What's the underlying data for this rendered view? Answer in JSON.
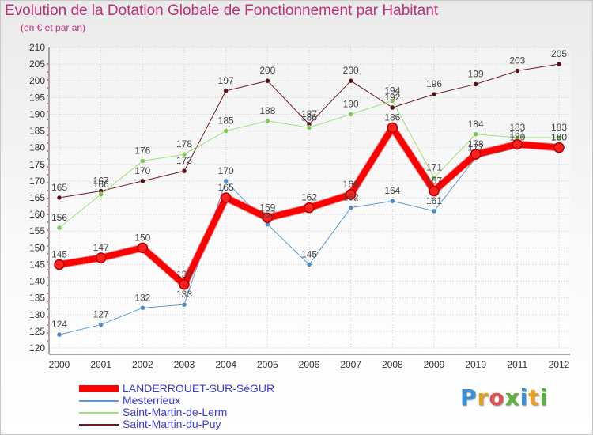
{
  "title": "Evolution de la Dotation Globale de Fonctionnement par Habitant",
  "subtitle": "(en € et par an)",
  "logo": {
    "letters": [
      "P",
      "r",
      "o",
      "x",
      "i",
      "t",
      "i"
    ],
    "colors": [
      "#3a8fd8",
      "#e8a020",
      "#e05050",
      "#5ab43c",
      "#3a8fd8",
      "#e8a020",
      "#5ab43c"
    ]
  },
  "chart_data": {
    "type": "line",
    "title": "Evolution de la Dotation Globale de Fonctionnement par Habitant",
    "subtitle": "(en € et par an)",
    "xlabel": "",
    "ylabel": "",
    "categories": [
      "2000",
      "2001",
      "2002",
      "2003",
      "2004",
      "2005",
      "2006",
      "2007",
      "2008",
      "2009",
      "2010",
      "2011",
      "2012"
    ],
    "ylim": [
      120,
      210
    ],
    "yticks": [
      120,
      125,
      130,
      135,
      140,
      145,
      150,
      155,
      160,
      165,
      170,
      175,
      180,
      185,
      190,
      195,
      200,
      205,
      210
    ],
    "grid": true,
    "legend_position": "bottom-left",
    "series": [
      {
        "name": "Saint-Martin-du-Puy",
        "color": "#6b1a24",
        "marker": "#5a1018",
        "width": 1,
        "values": [
          165,
          167,
          170,
          173,
          197,
          200,
          187,
          200,
          192,
          196,
          199,
          203,
          205
        ],
        "labels": [
          "165",
          "167",
          "170",
          "173",
          "197",
          "200",
          "187",
          "200",
          "192",
          "196",
          "199",
          "203",
          "205"
        ]
      },
      {
        "name": "Saint-Martin-de-Lerm",
        "color": "#9ee07a",
        "marker": "#7cc94e",
        "width": 1,
        "values": [
          156,
          166,
          176,
          178,
          185,
          188,
          186,
          190,
          194,
          171,
          184,
          183,
          183
        ],
        "labels": [
          "156",
          "166",
          "176",
          "178",
          "185",
          "188",
          "186",
          "190",
          "194",
          "171",
          "184",
          "183",
          "183"
        ]
      },
      {
        "name": "Mesterrieux",
        "color": "#5b9bd5",
        "marker": "#4a8ac4",
        "width": 1,
        "values": [
          124,
          127,
          132,
          133,
          170,
          157,
          145,
          162,
          164,
          161,
          177,
          180,
          180
        ],
        "labels": [
          "124",
          "127",
          "132",
          "133",
          "170",
          "157",
          "145",
          "162",
          "164",
          "161",
          "177",
          "180",
          "180"
        ]
      },
      {
        "name": "LANDERROUET-SUR-SéGUR",
        "color": "#ff0000",
        "marker": "#ff0000",
        "width": 8,
        "values": [
          145,
          147,
          150,
          139,
          165,
          159,
          162,
          166,
          186,
          167,
          178,
          181,
          180
        ],
        "labels": [
          "145",
          "147",
          "150",
          "139",
          "165",
          "159",
          "162",
          "166",
          "186",
          "167",
          "178",
          "181",
          "180"
        ]
      }
    ],
    "legend_order": [
      "LANDERROUET-SUR-SéGUR",
      "Mesterrieux",
      "Saint-Martin-de-Lerm",
      "Saint-Martin-du-Puy"
    ]
  }
}
